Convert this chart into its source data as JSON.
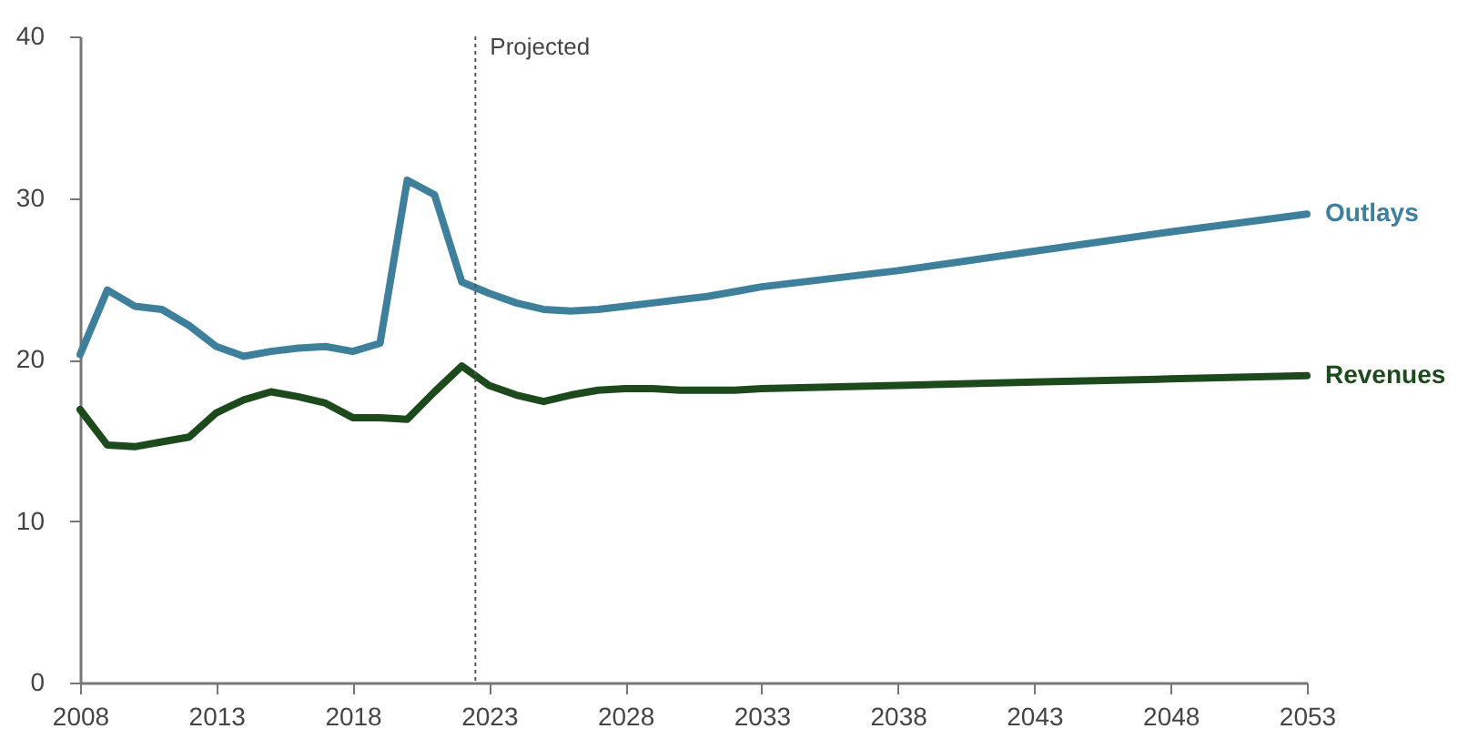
{
  "chart_data": {
    "type": "line",
    "xlim": [
      2008,
      2053
    ],
    "xticks": [
      2008,
      2013,
      2018,
      2023,
      2028,
      2033,
      2038,
      2043,
      2048,
      2053
    ],
    "ylim": [
      0,
      40
    ],
    "yticks": [
      0,
      10,
      20,
      30,
      40
    ],
    "grid": false,
    "x": [
      2008,
      2009,
      2010,
      2011,
      2012,
      2013,
      2014,
      2015,
      2016,
      2017,
      2018,
      2019,
      2020,
      2021,
      2022,
      2023,
      2024,
      2025,
      2026,
      2027,
      2028,
      2029,
      2030,
      2031,
      2032,
      2033,
      2038,
      2043,
      2048,
      2053
    ],
    "series": [
      {
        "name": "Outlays",
        "color": "#3e7f9c",
        "values": [
          20.3,
          24.3,
          23.3,
          23.1,
          22.1,
          20.8,
          20.2,
          20.5,
          20.7,
          20.8,
          20.5,
          21.0,
          31.1,
          30.2,
          24.8,
          24.1,
          23.5,
          23.1,
          23.0,
          23.1,
          23.3,
          23.5,
          23.7,
          23.9,
          24.2,
          24.5,
          25.5,
          26.7,
          27.9,
          29.0
        ]
      },
      {
        "name": "Revenues",
        "color": "#1d4a1d",
        "values": [
          16.9,
          14.7,
          14.6,
          14.9,
          15.2,
          16.7,
          17.5,
          18.0,
          17.7,
          17.3,
          16.4,
          16.4,
          16.3,
          18.0,
          19.6,
          18.4,
          17.8,
          17.4,
          17.8,
          18.1,
          18.2,
          18.2,
          18.1,
          18.1,
          18.1,
          18.2,
          18.4,
          18.6,
          18.8,
          19.0
        ]
      }
    ],
    "ref_lines": [
      {
        "axis": "x",
        "value": 2022.5,
        "label": "Projected",
        "color": "#555555",
        "line_style": "dotted"
      }
    ]
  }
}
